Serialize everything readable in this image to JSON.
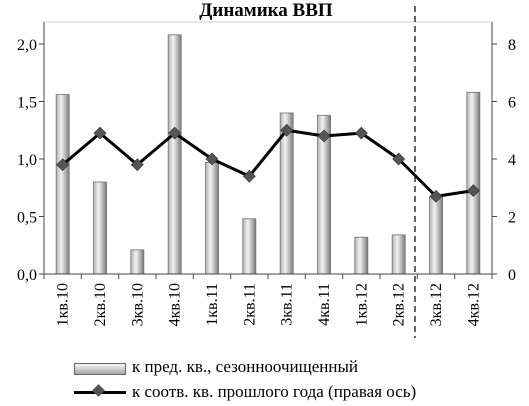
{
  "chart_data": {
    "type": "bar",
    "title": "Динамика ВВП",
    "categories": [
      "1кв.10",
      "2кв.10",
      "3кв.10",
      "4кв.10",
      "1кв.11",
      "2кв.11",
      "3кв.11",
      "4кв.11",
      "1кв.12",
      "2кв.12",
      "3кв.12",
      "4кв.12"
    ],
    "series": [
      {
        "name": "к пред. кв., сезонноочищенный",
        "type": "bar",
        "axis": "left",
        "values": [
          1.56,
          0.8,
          0.21,
          2.08,
          0.97,
          0.48,
          1.4,
          1.38,
          0.32,
          0.34,
          0.67,
          1.58
        ]
      },
      {
        "name": "к соотв. кв. прошлого года (правая ось)",
        "type": "line",
        "axis": "right",
        "values": [
          3.8,
          4.9,
          3.8,
          4.9,
          4.0,
          3.4,
          5.0,
          4.8,
          4.9,
          4.0,
          2.7,
          2.9
        ]
      }
    ],
    "y_left": {
      "min": 0,
      "max": 2.0,
      "ticks": [
        "0,0",
        "0,5",
        "1,0",
        "1,5",
        "2,0"
      ]
    },
    "y_right": {
      "min": 0,
      "max": 8,
      "ticks": [
        "0",
        "2",
        "4",
        "6",
        "8"
      ]
    },
    "forecast_divider_after": "2кв.12",
    "grid": false,
    "legend_position": "bottom",
    "colors": {
      "bar": "#a9a9a9",
      "line": "#000000",
      "marker": "#555555"
    }
  },
  "legend": {
    "bars": "к пред. кв., сезонноочищенный",
    "line": "к соотв. кв. прошлого года (правая ось)"
  }
}
